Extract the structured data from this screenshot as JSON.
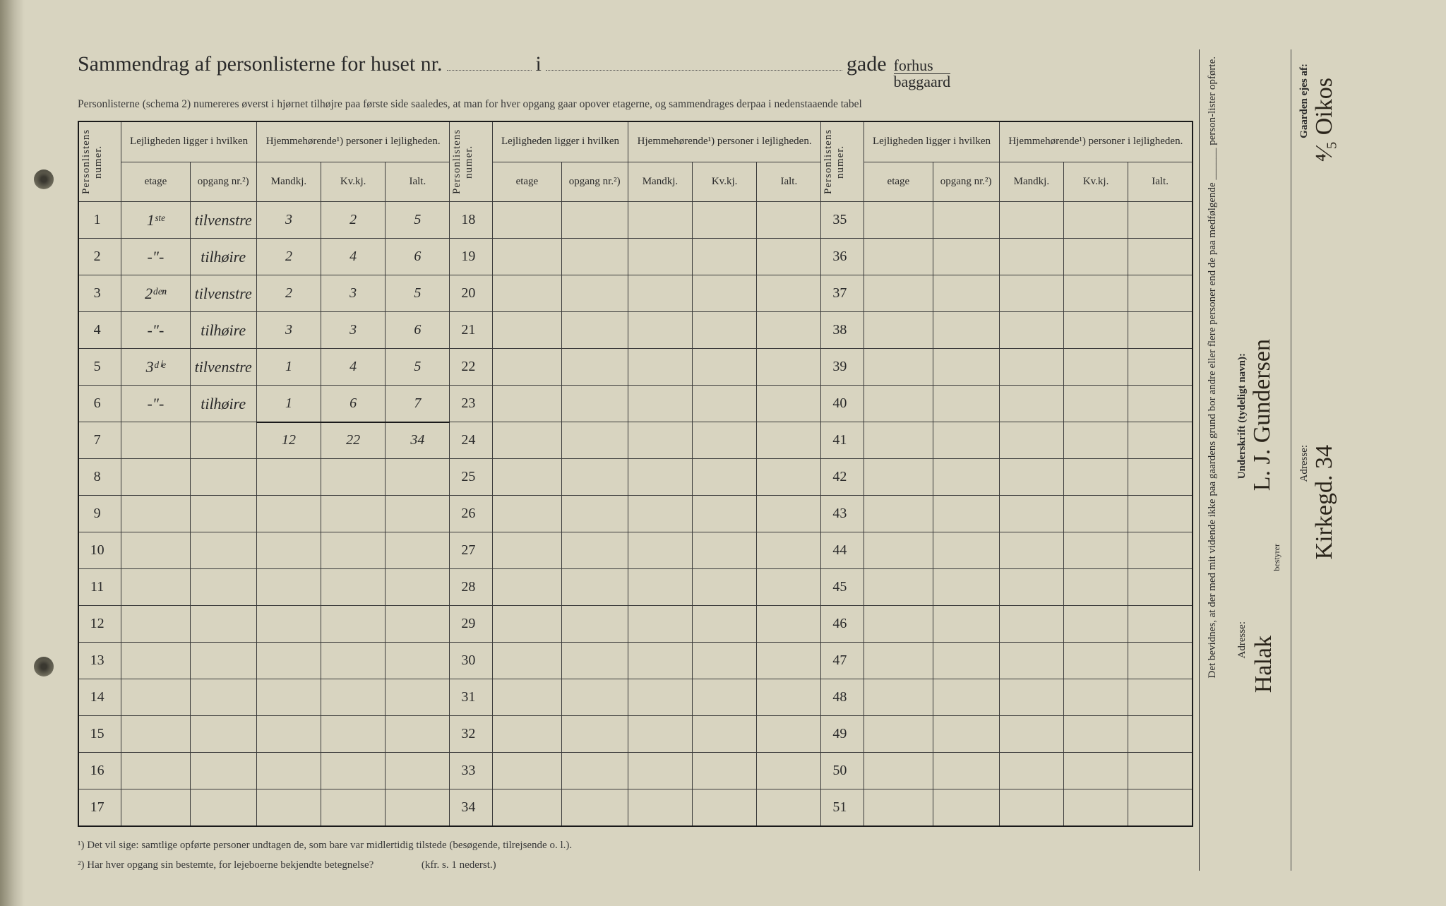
{
  "header": {
    "title_1": "Sammendrag af personlisterne for huset nr.",
    "title_i": "i",
    "title_gade": "gade",
    "frac_top": "forhus",
    "frac_bot": "baggaard",
    "instruction": "Personlisterne (schema 2) numereres øverst i hjørnet tilhøjre paa første side saaledes, at man for hver opgang gaar opover etagerne, og sammendrages derpaa i nedenstaaende tabel"
  },
  "cols": {
    "personlistens": "Personlistens numer.",
    "lejl": "Lejligheden ligger i hvilken",
    "hjem": "Hjemmehørende¹) personer i lejligheden.",
    "etage": "etage",
    "opgang": "opgang nr.²)",
    "mand": "Mandkj.",
    "kv": "Kv.kj.",
    "ialt": "Ialt."
  },
  "rows": [
    {
      "n": "1",
      "etage": "1ˢᵗᵉ",
      "opg": "tilvenstre",
      "m": "3",
      "k": "2",
      "i": "5"
    },
    {
      "n": "2",
      "etage": "-\"-",
      "opg": "tilhøire",
      "m": "2",
      "k": "4",
      "i": "6"
    },
    {
      "n": "3",
      "etage": "2ᵈᵉⁿ",
      "opg": "tilvenstre",
      "m": "2",
      "k": "3",
      "i": "5"
    },
    {
      "n": "4",
      "etage": "-\"-",
      "opg": "tilhøire",
      "m": "3",
      "k": "3",
      "i": "6"
    },
    {
      "n": "5",
      "etage": "3ᵈⁱᵉ",
      "opg": "tilvenstre",
      "m": "1",
      "k": "4",
      "i": "5"
    },
    {
      "n": "6",
      "etage": "-\"-",
      "opg": "tilhøire",
      "m": "1",
      "k": "6",
      "i": "7"
    }
  ],
  "sum": {
    "m": "12",
    "k": "22",
    "i": "34"
  },
  "block2_start": 18,
  "block3_start": 35,
  "block_len": 17,
  "footnotes": {
    "f1": "¹)  Det vil sige: samtlige opførte personer undtagen de, som bare var midlertidig tilstede (besøgende, tilrejsende o. l.).",
    "f2_a": "²)  Har hver opgang sin bestemte, for lejeboerne bekjendte betegnelse?",
    "f2_b": "(kfr. s. 1 nederst.)"
  },
  "side": {
    "attest": "Det bevidnes, at der med mit vidende ikke paa gaardens grund bor andre eller flere personer end de paa medfølgende ______ person-lister opførte.",
    "underskrift_label": "Underskrift (tydeligt navn):",
    "underskrift_hand": "L. J. Gundersen",
    "bestyrer": "bestyrer",
    "adresse_label_1": "Adresse:",
    "adresse_hand_1": "Halak",
    "gaarden_label": "Gaarden ejes af:",
    "gaarden_hand": "⁴⁄₅ Oikos",
    "adresse_label_2": "Adresse:",
    "adresse_hand_2": "Kirkegd. 34"
  }
}
